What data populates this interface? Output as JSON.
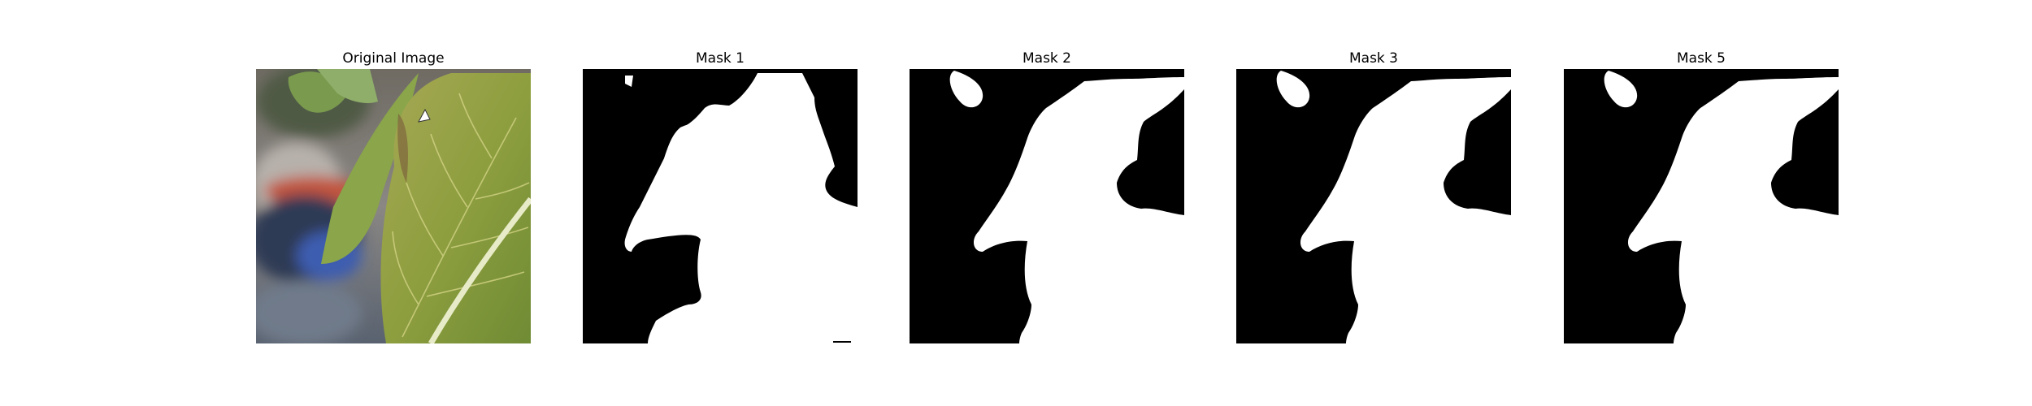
{
  "figure": {
    "panels": [
      {
        "title": "Original Image",
        "kind": "photo"
      },
      {
        "title": "Mask 1",
        "kind": "mask"
      },
      {
        "title": "Mask 2",
        "kind": "mask"
      },
      {
        "title": "Mask 3",
        "kind": "mask"
      },
      {
        "title": "Mask 5",
        "kind": "mask"
      }
    ]
  },
  "colors": {
    "background": "#ffffff",
    "mask_foreground": "#ffffff",
    "mask_background": "#000000",
    "leaf_green": "#8aa23c",
    "leaf_yellow": "#b9b35c",
    "blur_gray": "#7f7b78",
    "blur_red": "#c2553d",
    "blur_navy": "#2f3b55"
  }
}
